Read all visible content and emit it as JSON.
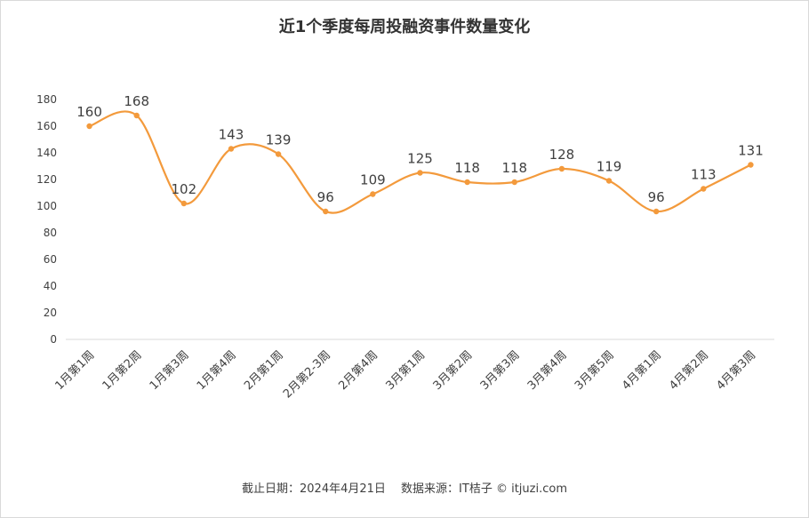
{
  "chart_data": {
    "type": "line",
    "title": "近1个季度每周投融资事件数量变化",
    "categories": [
      "1月第1周",
      "1月第2周",
      "1月第3周",
      "1月第4周",
      "2月第1周",
      "2月第2-3周",
      "2月第4周",
      "3月第1周",
      "3月第2周",
      "3月第3周",
      "3月第4周",
      "3月第5周",
      "4月第1周",
      "4月第2周",
      "4月第3周"
    ],
    "values": [
      160,
      168,
      102,
      143,
      139,
      96,
      109,
      125,
      118,
      118,
      128,
      119,
      96,
      113,
      131
    ],
    "ylim": [
      0,
      180
    ],
    "yticks": [
      "0",
      "20",
      "40",
      "60",
      "80",
      "100",
      "120",
      "140",
      "160",
      "180"
    ],
    "smooth": true,
    "grid": false,
    "legend": "none",
    "xlabel": "",
    "ylabel": ""
  },
  "colors": {
    "line": "#f39a3c",
    "axis": "#d9d9d9",
    "text": "#404040",
    "title": "#333333"
  },
  "footer": "截止日期：2024年4月21日　 数据来源：IT桔子 © itjuzi.com"
}
